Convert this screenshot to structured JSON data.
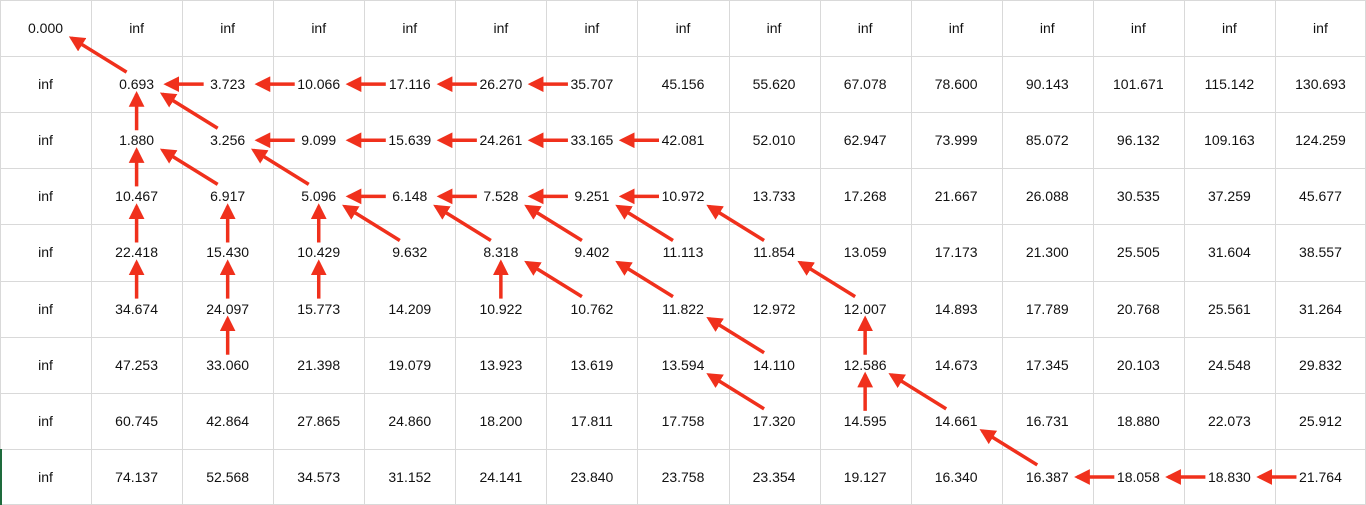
{
  "table": {
    "rows": [
      [
        "0.000",
        "inf",
        "inf",
        "inf",
        "inf",
        "inf",
        "inf",
        "inf",
        "inf",
        "inf",
        "inf",
        "inf",
        "inf",
        "inf",
        "inf"
      ],
      [
        "inf",
        "0.693",
        "3.723",
        "10.066",
        "17.116",
        "26.270",
        "35.707",
        "45.156",
        "55.620",
        "67.078",
        "78.600",
        "90.143",
        "101.671",
        "115.142",
        "130.693"
      ],
      [
        "inf",
        "1.880",
        "3.256",
        "9.099",
        "15.639",
        "24.261",
        "33.165",
        "42.081",
        "52.010",
        "62.947",
        "73.999",
        "85.072",
        "96.132",
        "109.163",
        "124.259"
      ],
      [
        "inf",
        "10.467",
        "6.917",
        "5.096",
        "6.148",
        "7.528",
        "9.251",
        "10.972",
        "13.733",
        "17.268",
        "21.667",
        "26.088",
        "30.535",
        "37.259",
        "45.677"
      ],
      [
        "inf",
        "22.418",
        "15.430",
        "10.429",
        "9.632",
        "8.318",
        "9.402",
        "11.113",
        "11.854",
        "13.059",
        "17.173",
        "21.300",
        "25.505",
        "31.604",
        "38.557"
      ],
      [
        "inf",
        "34.674",
        "24.097",
        "15.773",
        "14.209",
        "10.922",
        "10.762",
        "11.822",
        "12.972",
        "12.007",
        "14.893",
        "17.789",
        "20.768",
        "25.561",
        "31.264"
      ],
      [
        "inf",
        "47.253",
        "33.060",
        "21.398",
        "19.079",
        "13.923",
        "13.619",
        "13.594",
        "14.110",
        "12.586",
        "14.673",
        "17.345",
        "20.103",
        "24.548",
        "29.832"
      ],
      [
        "inf",
        "60.745",
        "42.864",
        "27.865",
        "24.860",
        "18.200",
        "17.811",
        "17.758",
        "17.320",
        "14.595",
        "14.661",
        "16.731",
        "18.880",
        "22.073",
        "25.912"
      ],
      [
        "inf",
        "74.137",
        "52.568",
        "34.573",
        "31.152",
        "24.141",
        "23.840",
        "23.758",
        "23.354",
        "19.127",
        "16.340",
        "16.387",
        "18.058",
        "18.830",
        "21.764"
      ]
    ],
    "arrows": [
      {
        "from": [
          1,
          1
        ],
        "to": [
          0,
          0
        ],
        "dir": "diag"
      },
      {
        "from": [
          1,
          2
        ],
        "to": [
          1,
          1
        ],
        "dir": "left"
      },
      {
        "from": [
          1,
          3
        ],
        "to": [
          1,
          2
        ],
        "dir": "left"
      },
      {
        "from": [
          1,
          4
        ],
        "to": [
          1,
          3
        ],
        "dir": "left"
      },
      {
        "from": [
          1,
          5
        ],
        "to": [
          1,
          4
        ],
        "dir": "left"
      },
      {
        "from": [
          1,
          6
        ],
        "to": [
          1,
          5
        ],
        "dir": "left"
      },
      {
        "from": [
          2,
          1
        ],
        "to": [
          1,
          1
        ],
        "dir": "up"
      },
      {
        "from": [
          2,
          2
        ],
        "to": [
          1,
          1
        ],
        "dir": "diag"
      },
      {
        "from": [
          2,
          3
        ],
        "to": [
          2,
          2
        ],
        "dir": "left"
      },
      {
        "from": [
          2,
          4
        ],
        "to": [
          2,
          3
        ],
        "dir": "left"
      },
      {
        "from": [
          2,
          5
        ],
        "to": [
          2,
          4
        ],
        "dir": "left"
      },
      {
        "from": [
          2,
          6
        ],
        "to": [
          2,
          5
        ],
        "dir": "left"
      },
      {
        "from": [
          2,
          7
        ],
        "to": [
          2,
          6
        ],
        "dir": "left"
      },
      {
        "from": [
          3,
          1
        ],
        "to": [
          2,
          1
        ],
        "dir": "up"
      },
      {
        "from": [
          3,
          2
        ],
        "to": [
          2,
          1
        ],
        "dir": "diag"
      },
      {
        "from": [
          3,
          3
        ],
        "to": [
          2,
          2
        ],
        "dir": "diag"
      },
      {
        "from": [
          3,
          4
        ],
        "to": [
          3,
          3
        ],
        "dir": "left"
      },
      {
        "from": [
          3,
          5
        ],
        "to": [
          3,
          4
        ],
        "dir": "left"
      },
      {
        "from": [
          3,
          6
        ],
        "to": [
          3,
          5
        ],
        "dir": "left"
      },
      {
        "from": [
          3,
          7
        ],
        "to": [
          3,
          6
        ],
        "dir": "left"
      },
      {
        "from": [
          4,
          1
        ],
        "to": [
          3,
          1
        ],
        "dir": "up"
      },
      {
        "from": [
          4,
          2
        ],
        "to": [
          3,
          2
        ],
        "dir": "up"
      },
      {
        "from": [
          4,
          3
        ],
        "to": [
          3,
          3
        ],
        "dir": "up"
      },
      {
        "from": [
          4,
          4
        ],
        "to": [
          3,
          3
        ],
        "dir": "diag"
      },
      {
        "from": [
          4,
          5
        ],
        "to": [
          3,
          4
        ],
        "dir": "diag"
      },
      {
        "from": [
          4,
          6
        ],
        "to": [
          3,
          5
        ],
        "dir": "diag"
      },
      {
        "from": [
          4,
          7
        ],
        "to": [
          3,
          6
        ],
        "dir": "diag"
      },
      {
        "from": [
          4,
          8
        ],
        "to": [
          3,
          7
        ],
        "dir": "diag"
      },
      {
        "from": [
          5,
          1
        ],
        "to": [
          4,
          1
        ],
        "dir": "up"
      },
      {
        "from": [
          5,
          2
        ],
        "to": [
          4,
          2
        ],
        "dir": "up"
      },
      {
        "from": [
          5,
          3
        ],
        "to": [
          4,
          3
        ],
        "dir": "up"
      },
      {
        "from": [
          5,
          5
        ],
        "to": [
          4,
          5
        ],
        "dir": "up"
      },
      {
        "from": [
          5,
          6
        ],
        "to": [
          4,
          5
        ],
        "dir": "diag"
      },
      {
        "from": [
          5,
          7
        ],
        "to": [
          4,
          6
        ],
        "dir": "diag"
      },
      {
        "from": [
          5,
          9
        ],
        "to": [
          4,
          8
        ],
        "dir": "diag"
      },
      {
        "from": [
          6,
          2
        ],
        "to": [
          5,
          2
        ],
        "dir": "up"
      },
      {
        "from": [
          6,
          8
        ],
        "to": [
          5,
          7
        ],
        "dir": "diag"
      },
      {
        "from": [
          6,
          9
        ],
        "to": [
          5,
          9
        ],
        "dir": "up"
      },
      {
        "from": [
          7,
          8
        ],
        "to": [
          6,
          7
        ],
        "dir": "diag"
      },
      {
        "from": [
          7,
          9
        ],
        "to": [
          6,
          9
        ],
        "dir": "up"
      },
      {
        "from": [
          7,
          10
        ],
        "to": [
          6,
          9
        ],
        "dir": "diag"
      },
      {
        "from": [
          8,
          11
        ],
        "to": [
          7,
          10
        ],
        "dir": "diag"
      },
      {
        "from": [
          8,
          12
        ],
        "to": [
          8,
          11
        ],
        "dir": "left"
      },
      {
        "from": [
          8,
          13
        ],
        "to": [
          8,
          12
        ],
        "dir": "left"
      },
      {
        "from": [
          8,
          14
        ],
        "to": [
          8,
          13
        ],
        "dir": "left"
      }
    ],
    "colors": {
      "arrow": "#f0301c",
      "grid": "#d9d9d9",
      "text": "#111111"
    }
  }
}
